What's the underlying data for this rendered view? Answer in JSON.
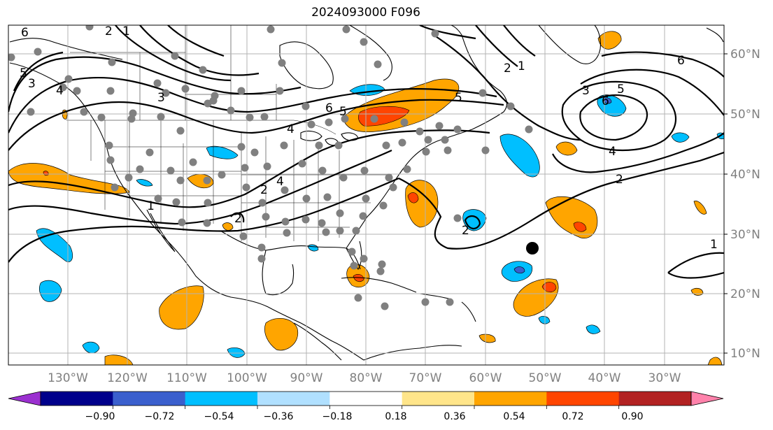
{
  "title": "2024093000 F096",
  "lon_labels": [
    "130°W",
    "120°W",
    "110°W",
    "100°W",
    "90°W",
    "80°W",
    "70°W",
    "60°W",
    "50°W",
    "40°W",
    "30°W"
  ],
  "lat_labels": [
    "60°N",
    "50°N",
    "40°N",
    "30°N",
    "20°N",
    "10°N"
  ],
  "colorbar": {
    "tick_labels": [
      "−0.90",
      "−0.72",
      "−0.54",
      "−0.36",
      "−0.18",
      "0.18",
      "0.36",
      "0.54",
      "0.72",
      "0.90"
    ],
    "colors": [
      "#9b30d0",
      "#00008b",
      "#3a5fcd",
      "#00bfff",
      "#b0e0ff",
      "#ffffff",
      "#ffe58a",
      "#ffa500",
      "#ff4500",
      "#b22222",
      "#ff82ab"
    ]
  },
  "contour_labels": [
    "6",
    "5",
    "4",
    "3",
    "2",
    "1",
    "1",
    "2",
    "4",
    "6",
    "5",
    "3",
    "6",
    "5",
    "4",
    "2",
    "2",
    "1",
    "2",
    "3",
    "5",
    "6",
    "4",
    "2",
    "1"
  ],
  "colors": {
    "positive": "#ffa500",
    "positive_strong": "#ff4500",
    "negative": "#00bfff",
    "negative_strong": "#3a5fcd",
    "station": "#808080",
    "marker": "#000000"
  }
}
